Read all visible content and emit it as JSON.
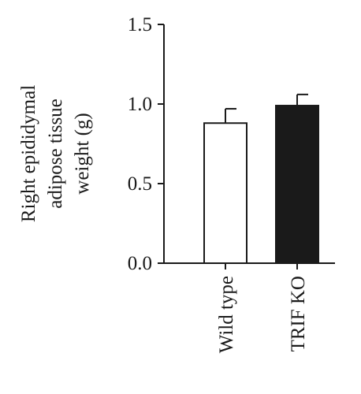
{
  "chart_data": {
    "type": "bar",
    "title": "",
    "xlabel": "",
    "ylabel_lines": [
      "Right epididymal",
      "adipose tissue",
      "weight (g)"
    ],
    "categories": [
      "Wild type",
      "TRIF KO"
    ],
    "values": [
      0.88,
      0.99
    ],
    "error_upper": [
      0.97,
      1.06
    ],
    "bar_fill": [
      "#ffffff",
      "#1a1a1a"
    ],
    "ylim": [
      0.0,
      1.5
    ],
    "yticks": [
      0.0,
      0.5,
      1.0,
      1.5
    ],
    "ytick_labels": [
      "0.0",
      "0.5",
      "1.0",
      "1.5"
    ],
    "grid": false,
    "legend": "none"
  }
}
